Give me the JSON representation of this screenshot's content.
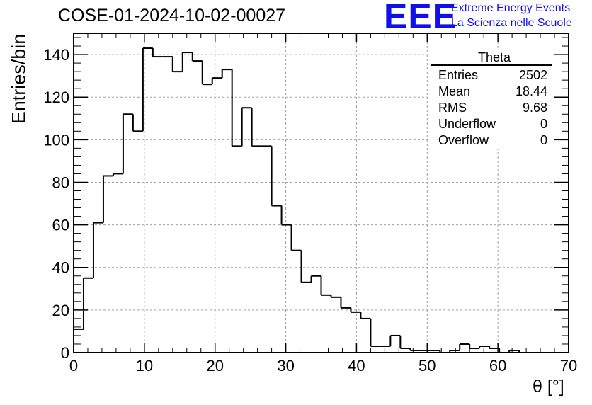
{
  "header": {
    "run_title": "COSE-01-2024-10-02-00027",
    "logo_text": "EEE",
    "logo_line1": "Extreme Energy Events",
    "logo_line2": "La Scienza nelle Scuole"
  },
  "stats_box": {
    "title": "Theta",
    "rows": [
      {
        "label": "Entries",
        "value": "2502"
      },
      {
        "label": "Mean",
        "value": "18.44"
      },
      {
        "label": "RMS",
        "value": "9.68"
      },
      {
        "label": "Underflow",
        "value": "0"
      },
      {
        "label": "Overflow",
        "value": "0"
      }
    ]
  },
  "colors": {
    "logo": "#1010e8",
    "histogram_line": "#000000",
    "grid": "#a0a0a0"
  },
  "chart_data": {
    "type": "histogram",
    "title": "COSE-01-2024-10-02-00027",
    "xlabel": "θ [°]",
    "ylabel": "Entries/bin",
    "xlim": [
      0,
      70
    ],
    "ylim": [
      0,
      150
    ],
    "x_ticks": [
      0,
      10,
      20,
      30,
      40,
      50,
      60,
      70
    ],
    "y_ticks": [
      0,
      20,
      40,
      60,
      80,
      100,
      120,
      140
    ],
    "grid": true,
    "bin_width": 1.4,
    "bin_edges_start": 0,
    "values": [
      11,
      35,
      61,
      83,
      84,
      112,
      104,
      143,
      139,
      139,
      132,
      141,
      137,
      126,
      129,
      133,
      97,
      115,
      97,
      97,
      69,
      60,
      48,
      33,
      36,
      27,
      26,
      21,
      19,
      16,
      3,
      3,
      8,
      2,
      1,
      1,
      1,
      0,
      1,
      4,
      2,
      3,
      2,
      0,
      1,
      0,
      0,
      0,
      0,
      0
    ]
  }
}
